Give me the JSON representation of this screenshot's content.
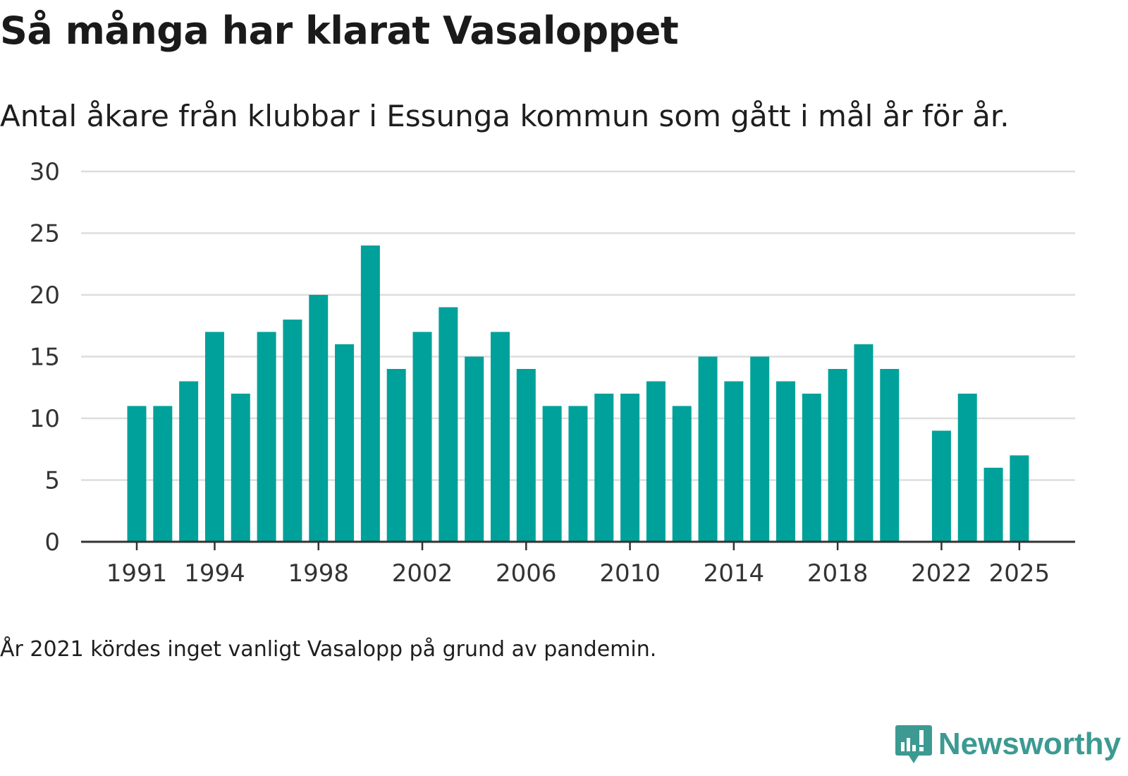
{
  "header": {
    "title": "Så många har klarat Vasaloppet",
    "subtitle": "Antal åkare från klubbar i Essunga kommun som gått i mål år för år."
  },
  "footnote": "År 2021 kördes inget vanligt Vasalopp på grund av pandemin.",
  "brand": {
    "name": "Newsworthy",
    "color": "#3c9a92",
    "icon": "newsworthy-logo-icon"
  },
  "colors": {
    "bar": "#00a19a",
    "grid": "#dddddd",
    "axis": "#333333"
  },
  "chart_data": {
    "type": "bar",
    "title": "Så många har klarat Vasaloppet",
    "xlabel": "",
    "ylabel": "",
    "ylim": [
      0,
      30
    ],
    "yticks": [
      0,
      5,
      10,
      15,
      20,
      25,
      30
    ],
    "xticks": [
      "1991",
      "1994",
      "1998",
      "2002",
      "2006",
      "2010",
      "2014",
      "2018",
      "2022",
      "2025"
    ],
    "categories": [
      "1991",
      "1992",
      "1993",
      "1994",
      "1995",
      "1996",
      "1997",
      "1998",
      "1999",
      "2000",
      "2001",
      "2002",
      "2003",
      "2004",
      "2005",
      "2006",
      "2007",
      "2008",
      "2009",
      "2010",
      "2011",
      "2012",
      "2013",
      "2014",
      "2015",
      "2016",
      "2017",
      "2018",
      "2019",
      "2020",
      "2021",
      "2022",
      "2023",
      "2024",
      "2025"
    ],
    "values": [
      11,
      11,
      13,
      17,
      12,
      17,
      18,
      20,
      16,
      24,
      14,
      17,
      19,
      15,
      17,
      14,
      11,
      11,
      12,
      12,
      13,
      11,
      15,
      13,
      15,
      13,
      12,
      14,
      16,
      14,
      null,
      9,
      12,
      6,
      7
    ],
    "grid": true
  }
}
